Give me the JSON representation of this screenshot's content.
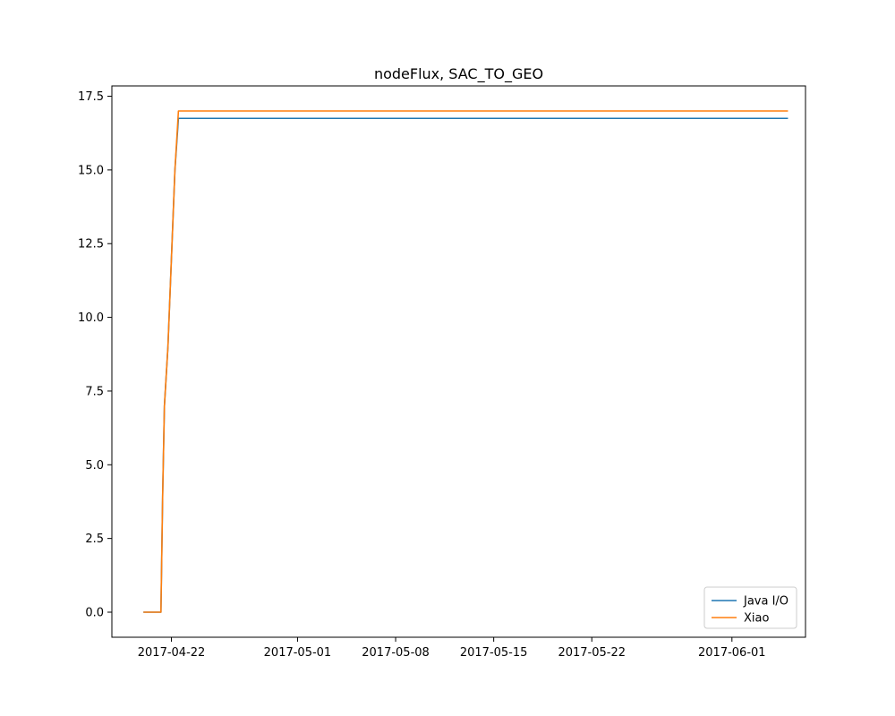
{
  "chart_data": {
    "type": "line",
    "title": "nodeFlux, SAC_TO_GEO",
    "xlabel": "",
    "ylabel": "",
    "x_axis": {
      "kind": "date",
      "range": [
        "2017-04-17T18:00",
        "2017-06-06T06:00"
      ],
      "ticks": [
        "2017-04-22",
        "2017-05-01",
        "2017-05-08",
        "2017-05-15",
        "2017-05-22",
        "2017-06-01"
      ]
    },
    "y_axis": {
      "range": [
        -0.85,
        17.85
      ],
      "ticks": [
        0.0,
        2.5,
        5.0,
        7.5,
        10.0,
        12.5,
        15.0,
        17.5
      ],
      "tick_labels": [
        "0.0",
        "2.5",
        "5.0",
        "7.5",
        "10.0",
        "12.5",
        "15.0",
        "17.5"
      ]
    },
    "grid": false,
    "legend": {
      "position": "lower-right"
    },
    "series": [
      {
        "name": "Java I/O",
        "color": "#1f77b4",
        "points": [
          [
            "2017-04-20T00:00",
            0.0
          ],
          [
            "2017-04-21T06:00",
            0.0
          ],
          [
            "2017-04-21T09:00",
            4.0
          ],
          [
            "2017-04-21T12:00",
            7.0
          ],
          [
            "2017-04-21T18:00",
            9.0
          ],
          [
            "2017-04-22T00:00",
            12.0
          ],
          [
            "2017-04-22T06:00",
            15.0
          ],
          [
            "2017-04-22T12:00",
            16.75
          ],
          [
            "2017-06-05T00:00",
            16.75
          ]
        ]
      },
      {
        "name": "Xiao",
        "color": "#ff7f0e",
        "points": [
          [
            "2017-04-20T00:00",
            0.0
          ],
          [
            "2017-04-21T06:00",
            0.0
          ],
          [
            "2017-04-21T09:00",
            4.0
          ],
          [
            "2017-04-21T12:00",
            7.0
          ],
          [
            "2017-04-21T18:00",
            9.0
          ],
          [
            "2017-04-22T00:00",
            12.0
          ],
          [
            "2017-04-22T06:00",
            15.0
          ],
          [
            "2017-04-22T12:00",
            17.0
          ],
          [
            "2017-06-05T00:00",
            17.0
          ]
        ]
      }
    ]
  }
}
